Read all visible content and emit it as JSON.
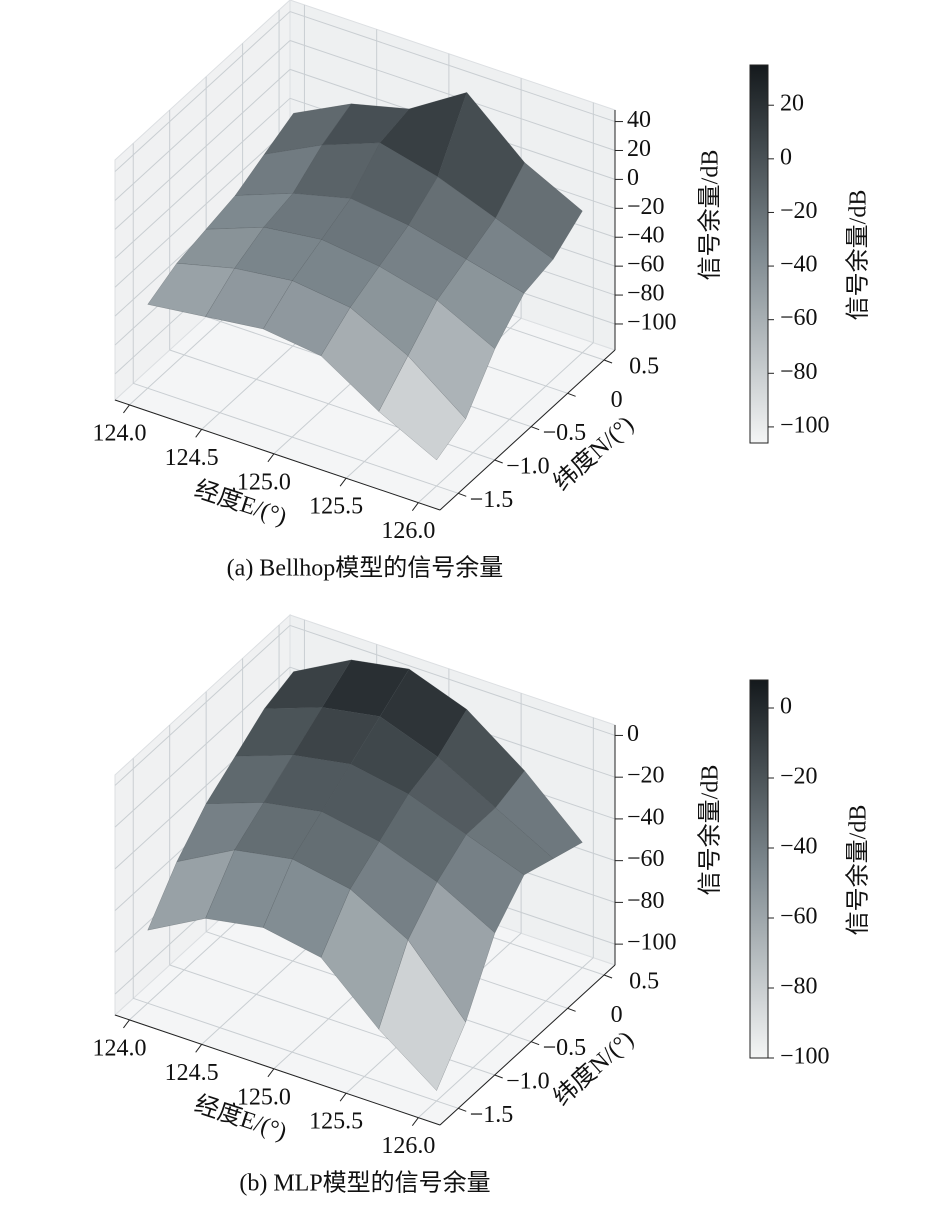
{
  "chart_data": [
    {
      "type": "surface3d",
      "title": "(a) Bellhop模型的信号余量",
      "xlabel": "经度E/(°)",
      "ylabel": "纬度N/(°)",
      "zlabel": "信号余量/dB",
      "colorbar_label": "信号余量/dB",
      "x": [
        124,
        124.4,
        124.8,
        125.2,
        125.6,
        126
      ],
      "y": [
        -1.5,
        -1.1,
        -0.7,
        -0.3,
        0.1,
        0.5
      ],
      "z": [
        [
          -60,
          -55,
          -50,
          -55,
          -80,
          -100
        ],
        [
          -50,
          -40,
          -35,
          -40,
          -60,
          -90
        ],
        [
          -45,
          -30,
          -25,
          -30,
          -40,
          -60
        ],
        [
          -40,
          -25,
          -15,
          -20,
          -30,
          -40
        ],
        [
          -30,
          -10,
          5,
          -5,
          -20,
          -35
        ],
        [
          -20,
          0,
          10,
          35,
          0,
          -20
        ]
      ],
      "xlim": [
        123.9,
        126.15
      ],
      "ylim": [
        -1.75,
        0.65
      ],
      "zlim": [
        -118,
        48
      ],
      "xticks": [
        {
          "value": 124,
          "label": "124.0"
        },
        124.5,
        {
          "value": 125,
          "label": "125.0"
        },
        125.5,
        {
          "value": 126,
          "label": "126.0"
        }
      ],
      "yticks": [
        {
          "value": -1.5,
          "label": "−1.5"
        },
        {
          "value": -1,
          "label": "−1.0"
        },
        {
          "value": -0.5,
          "label": "−0.5"
        },
        0,
        0.5
      ],
      "zticks": [
        {
          "value": -100,
          "label": "−100"
        },
        {
          "value": -80,
          "label": "−80"
        },
        {
          "value": -60,
          "label": "−60"
        },
        {
          "value": -40,
          "label": "−40"
        },
        {
          "value": -20,
          "label": "−20"
        },
        0,
        20,
        40
      ],
      "clim": [
        -106,
        35
      ],
      "cticks": [
        {
          "value": -100,
          "label": "−100"
        },
        {
          "value": -80,
          "label": "−80"
        },
        {
          "value": -60,
          "label": "−60"
        },
        {
          "value": -40,
          "label": "−40"
        },
        {
          "value": -20,
          "label": "−20"
        },
        0,
        20
      ]
    },
    {
      "type": "surface3d",
      "title": "(b) MLP模型的信号余量",
      "xlabel": "经度E/(°)",
      "ylabel": "纬度N/(°)",
      "zlabel": "信号余量/dB",
      "colorbar_label": "信号余量/dB",
      "x": [
        124,
        124.4,
        124.8,
        125.2,
        125.6,
        126
      ],
      "y": [
        -1.5,
        -1.1,
        -0.7,
        -0.3,
        0.1,
        0.5
      ],
      "z": [
        [
          -75,
          -60,
          -55,
          -60,
          -85,
          -105
        ],
        [
          -55,
          -40,
          -35,
          -40,
          -55,
          -85
        ],
        [
          -40,
          -30,
          -25,
          -30,
          -40,
          -55
        ],
        [
          -30,
          -20,
          -15,
          -20,
          -30,
          -40
        ],
        [
          -20,
          -10,
          -5,
          -15,
          -30,
          -45
        ],
        [
          -15,
          0,
          5,
          -5,
          -25,
          -50
        ]
      ],
      "xlim": [
        123.9,
        126.15
      ],
      "ylim": [
        -1.75,
        0.65
      ],
      "zlim": [
        -110,
        5
      ],
      "xticks": [
        {
          "value": 124,
          "label": "124.0"
        },
        124.5,
        {
          "value": 125,
          "label": "125.0"
        },
        125.5,
        {
          "value": 126,
          "label": "126.0"
        }
      ],
      "yticks": [
        {
          "value": -1.5,
          "label": "−1.5"
        },
        {
          "value": -1,
          "label": "−1.0"
        },
        {
          "value": -0.5,
          "label": "−0.5"
        },
        0,
        0.5
      ],
      "zticks": [
        {
          "value": -100,
          "label": "−100"
        },
        {
          "value": -80,
          "label": "−80"
        },
        {
          "value": -60,
          "label": "−60"
        },
        {
          "value": -40,
          "label": "−40"
        },
        {
          "value": -20,
          "label": "−20"
        },
        0
      ],
      "clim": [
        -100,
        8
      ],
      "cticks": [
        {
          "value": -100,
          "label": "−100"
        },
        {
          "value": -80,
          "label": "−80"
        },
        {
          "value": -60,
          "label": "−60"
        },
        {
          "value": -40,
          "label": "−40"
        },
        {
          "value": -20,
          "label": "−20"
        },
        0
      ]
    }
  ]
}
